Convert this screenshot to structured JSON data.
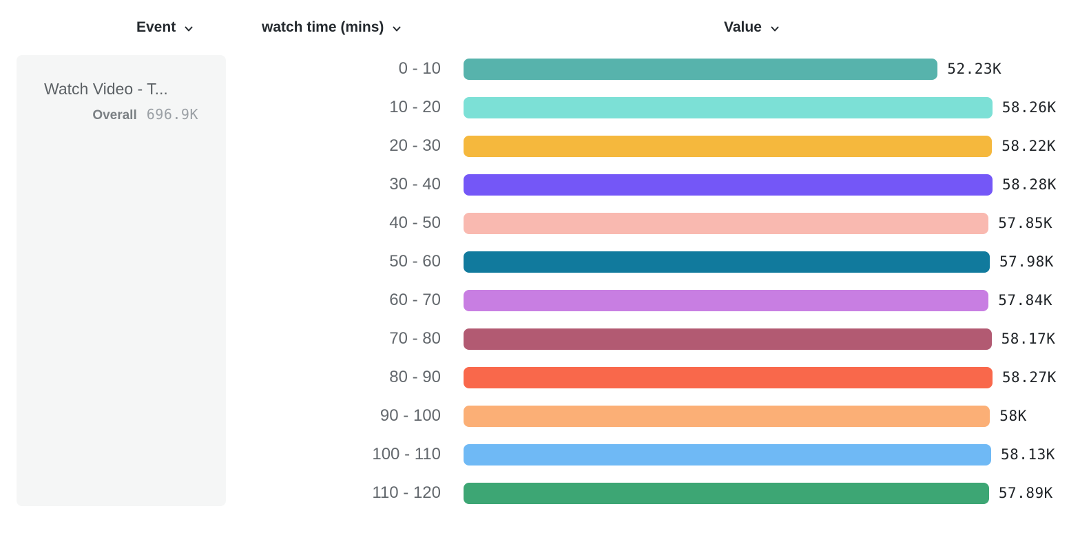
{
  "columns": {
    "event": {
      "label": "Event"
    },
    "breakdown": {
      "label": "watch time (mins)"
    },
    "value": {
      "label": "Value"
    }
  },
  "event_card": {
    "title": "Watch Video - T...",
    "overall_label": "Overall",
    "overall_value": "696.9K"
  },
  "chart_data": {
    "type": "bar",
    "orientation": "horizontal",
    "title": "",
    "xlabel": "Value",
    "ylabel": "watch time (mins)",
    "xlim": [
      0,
      58280
    ],
    "grid": false,
    "categories": [
      "0 - 10",
      "10 - 20",
      "20 - 30",
      "30 - 40",
      "40 - 50",
      "50 - 60",
      "60 - 70",
      "70 - 80",
      "80 - 90",
      "90 - 100",
      "100 - 110",
      "110 - 120"
    ],
    "values": [
      52230,
      58260,
      58220,
      58280,
      57850,
      57980,
      57840,
      58170,
      58270,
      58000,
      58130,
      57890
    ],
    "value_labels": [
      "52.23K",
      "58.26K",
      "58.22K",
      "58.28K",
      "57.85K",
      "57.98K",
      "57.84K",
      "58.17K",
      "58.27K",
      "58K",
      "58.13K",
      "57.89K"
    ],
    "colors": [
      "#57b3ac",
      "#7ce0d6",
      "#f5b83d",
      "#7457f7",
      "#f9b9b0",
      "#117a9d",
      "#c87ee2",
      "#b25a72",
      "#f9684b",
      "#fbaf76",
      "#6fb9f5",
      "#3da674"
    ]
  },
  "icons": {
    "chevron_down": "chevron-down-icon"
  },
  "layout_colors": {
    "card_bg": "#f5f6f6",
    "header_text": "#24292e",
    "category_text": "#63686d",
    "value_text": "#202428"
  }
}
